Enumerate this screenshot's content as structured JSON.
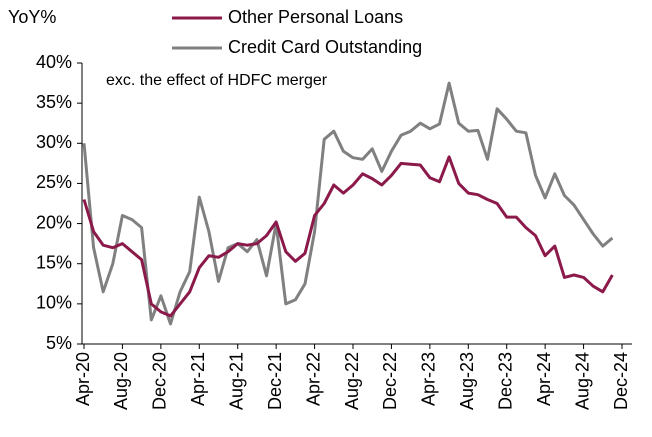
{
  "chart_data": {
    "type": "line",
    "y_label": "YoY%",
    "annotation": "exc. the effect of HDFC merger",
    "categories": [
      "Apr-20",
      null,
      null,
      null,
      "Aug-20",
      null,
      null,
      null,
      "Dec-20",
      null,
      null,
      null,
      "Apr-21",
      null,
      null,
      null,
      "Aug-21",
      null,
      null,
      null,
      "Dec-21",
      null,
      null,
      null,
      "Apr-22",
      null,
      null,
      null,
      "Aug-22",
      null,
      null,
      null,
      "Dec-22",
      null,
      null,
      null,
      "Apr-23",
      null,
      null,
      null,
      "Aug-23",
      null,
      null,
      null,
      "Dec-23",
      null,
      null,
      null,
      "Apr-24",
      null,
      null,
      null,
      "Aug-24",
      null,
      null,
      null,
      "Dec-24"
    ],
    "series": [
      {
        "name": "Other Personal Loans",
        "color": "#8b1a4a",
        "values": [
          23,
          19,
          17.3,
          17,
          17.5,
          16.5,
          15.5,
          10,
          9,
          8.5,
          10,
          11.5,
          14.5,
          16,
          15.8,
          16.5,
          17.5,
          17.3,
          17.5,
          18.5,
          20.2,
          16.5,
          15.3,
          16.3,
          21,
          22.5,
          24.8,
          23.8,
          24.8,
          26.2,
          25.6,
          24.8,
          26,
          27.5,
          27.4,
          27.3,
          25.7,
          25.2,
          28.3,
          25,
          23.8,
          23.6,
          23,
          22.5,
          20.8,
          20.8,
          19.5,
          18.5,
          16,
          17.2,
          13.3,
          13.6,
          13.3,
          12.2,
          11.5,
          13.6,
          null
        ]
      },
      {
        "name": "Credit Card Outstanding",
        "color": "#808080",
        "values": [
          30,
          17,
          11.5,
          15,
          21,
          20.5,
          19.5,
          8,
          11,
          7.5,
          11.5,
          14,
          23.3,
          19,
          12.8,
          17,
          17.5,
          16.5,
          18,
          13.5,
          20,
          10,
          10.5,
          12.5,
          19,
          30.5,
          31.5,
          29,
          28.2,
          28,
          29.3,
          26.5,
          29,
          31,
          31.5,
          32.5,
          31.8,
          32.4,
          37.5,
          32.5,
          31.5,
          31.6,
          28,
          34.3,
          33,
          31.5,
          31.3,
          26,
          23.2,
          26.2,
          23.5,
          22.3,
          20.5,
          18.7,
          17.2,
          18.2,
          null
        ]
      }
    ],
    "ylim": [
      5,
      40
    ],
    "yticks": [
      {
        "value": 5,
        "label": "5%"
      },
      {
        "value": 10,
        "label": "10%"
      },
      {
        "value": 15,
        "label": "15%"
      },
      {
        "value": 20,
        "label": "20%"
      },
      {
        "value": 25,
        "label": "25%"
      },
      {
        "value": 30,
        "label": "30%"
      },
      {
        "value": 35,
        "label": "35%"
      },
      {
        "value": 40,
        "label": "40%"
      }
    ],
    "legend": "top"
  }
}
